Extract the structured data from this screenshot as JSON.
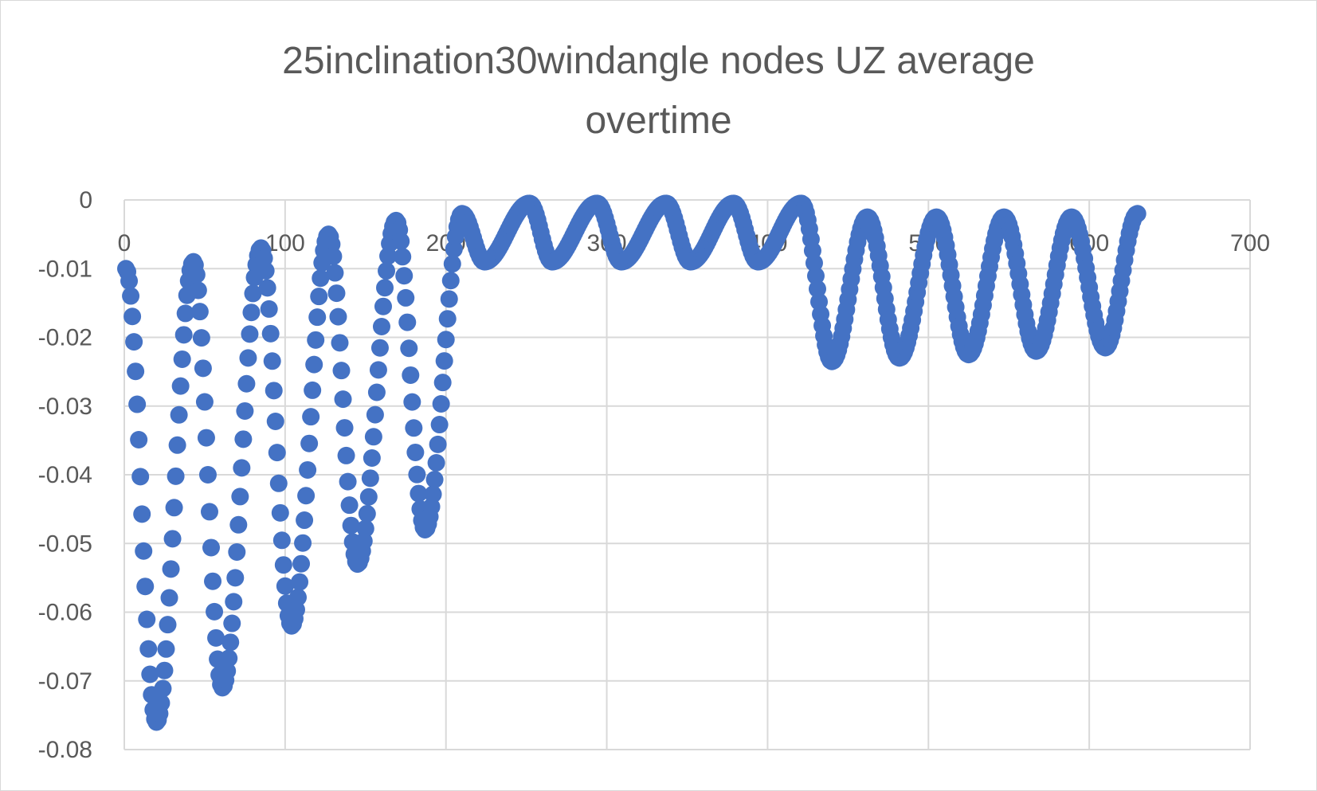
{
  "chart_data": {
    "type": "scatter",
    "title_lines": [
      "25inclination30windangle nodes UZ average",
      "overtime"
    ],
    "xlabel": "",
    "ylabel": "",
    "xlim": [
      0,
      700
    ],
    "ylim": [
      -0.08,
      0
    ],
    "x_ticks": [
      0,
      100,
      200,
      300,
      400,
      500,
      600,
      700
    ],
    "y_ticks": [
      0,
      -0.01,
      -0.02,
      -0.03,
      -0.04,
      -0.05,
      -0.06,
      -0.07,
      -0.08
    ],
    "x_tick_labels": [
      "0",
      "100",
      "200",
      "300",
      "400",
      "500",
      "600",
      "700"
    ],
    "y_tick_labels": [
      "0",
      "-0.01",
      "-0.02",
      "-0.03",
      "-0.04",
      "-0.05",
      "-0.06",
      "-0.07",
      "-0.08"
    ],
    "x_axis_position": "top (at y = 0)",
    "grid": true,
    "legend": "none",
    "marker_color": "#4472C4",
    "grid_color": "#d9d9d9",
    "series": [
      {
        "name": "UZ average",
        "segments": [
          {
            "x_start": 1,
            "x_end": 20,
            "y_start": -0.01,
            "y_end": -0.076
          },
          {
            "x_start": 20,
            "x_end": 43,
            "y_start": -0.076,
            "y_end": -0.009
          },
          {
            "x_start": 43,
            "x_end": 61,
            "y_start": -0.009,
            "y_end": -0.071
          },
          {
            "x_start": 61,
            "x_end": 85,
            "y_start": -0.071,
            "y_end": -0.007
          },
          {
            "x_start": 85,
            "x_end": 104,
            "y_start": -0.007,
            "y_end": -0.062
          },
          {
            "x_start": 104,
            "x_end": 127,
            "y_start": -0.062,
            "y_end": -0.005
          },
          {
            "x_start": 127,
            "x_end": 145,
            "y_start": -0.005,
            "y_end": -0.053
          },
          {
            "x_start": 145,
            "x_end": 169,
            "y_start": -0.053,
            "y_end": -0.003
          },
          {
            "x_start": 169,
            "x_end": 187,
            "y_start": -0.003,
            "y_end": -0.048
          },
          {
            "x_start": 187,
            "x_end": 210,
            "y_start": -0.048,
            "y_end": -0.002
          },
          {
            "x_start": 210,
            "x_end": 224,
            "y_start": -0.002,
            "y_end": -0.009
          },
          {
            "x_start": 224,
            "x_end": 252,
            "y_start": -0.009,
            "y_end": -0.0005
          },
          {
            "x_start": 252,
            "x_end": 266,
            "y_start": -0.0005,
            "y_end": -0.009
          },
          {
            "x_start": 266,
            "x_end": 294,
            "y_start": -0.009,
            "y_end": -0.0005
          },
          {
            "x_start": 294,
            "x_end": 309,
            "y_start": -0.0005,
            "y_end": -0.009
          },
          {
            "x_start": 309,
            "x_end": 337,
            "y_start": -0.009,
            "y_end": -0.0005
          },
          {
            "x_start": 337,
            "x_end": 352,
            "y_start": -0.0005,
            "y_end": -0.009
          },
          {
            "x_start": 352,
            "x_end": 379,
            "y_start": -0.009,
            "y_end": -0.0005
          },
          {
            "x_start": 379,
            "x_end": 394,
            "y_start": -0.0005,
            "y_end": -0.009
          },
          {
            "x_start": 394,
            "x_end": 421,
            "y_start": -0.009,
            "y_end": -0.0005
          },
          {
            "x_start": 421,
            "x_end": 440,
            "y_start": -0.0005,
            "y_end": -0.0235
          },
          {
            "x_start": 440,
            "x_end": 462,
            "y_start": -0.0235,
            "y_end": -0.0025
          },
          {
            "x_start": 462,
            "x_end": 482,
            "y_start": -0.0025,
            "y_end": -0.023
          },
          {
            "x_start": 482,
            "x_end": 505,
            "y_start": -0.023,
            "y_end": -0.0025
          },
          {
            "x_start": 505,
            "x_end": 525,
            "y_start": -0.0025,
            "y_end": -0.0225
          },
          {
            "x_start": 525,
            "x_end": 547,
            "y_start": -0.0225,
            "y_end": -0.0025
          },
          {
            "x_start": 547,
            "x_end": 567,
            "y_start": -0.0025,
            "y_end": -0.022
          },
          {
            "x_start": 567,
            "x_end": 589,
            "y_start": -0.022,
            "y_end": -0.0025
          },
          {
            "x_start": 589,
            "x_end": 610,
            "y_start": -0.0025,
            "y_end": -0.0215
          },
          {
            "x_start": 610,
            "x_end": 630,
            "y_start": -0.0215,
            "y_end": -0.002
          }
        ]
      }
    ]
  }
}
